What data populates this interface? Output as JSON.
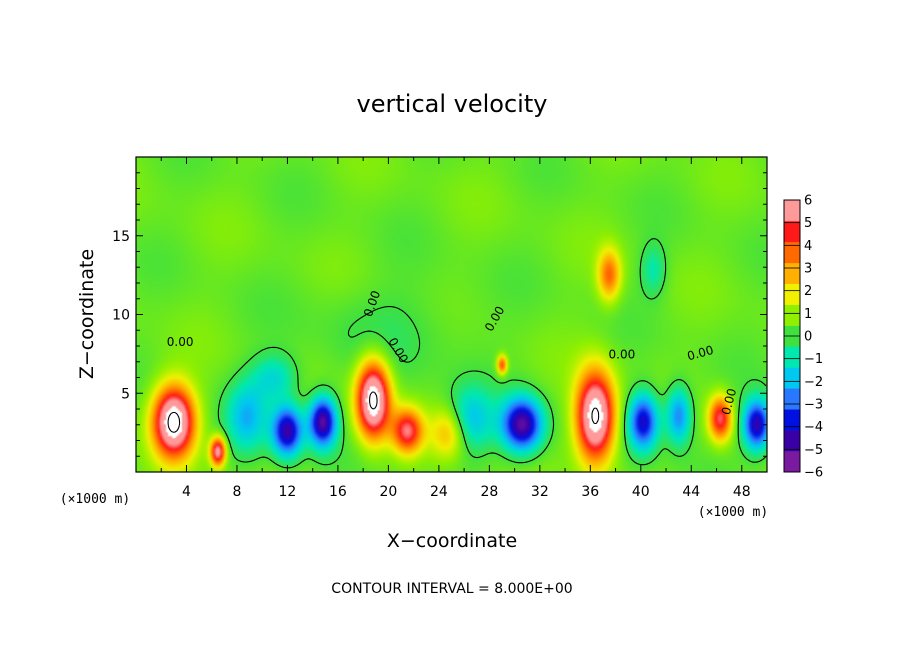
{
  "chart_data": {
    "type": "heatmap",
    "title": "vertical velocity",
    "xlabel": "X−coordinate",
    "ylabel": "Z−coordinate",
    "x_unit_label": "(×1000 m)",
    "y_unit_label": "(×1000 m)",
    "xlim": [
      0,
      50
    ],
    "ylim": [
      0,
      20
    ],
    "x_ticks": [
      4,
      8,
      12,
      16,
      20,
      24,
      28,
      32,
      36,
      40,
      44,
      48
    ],
    "x_tick_labels": [
      "4",
      "8",
      "12",
      "16",
      "20",
      "24",
      "28",
      "32",
      "36",
      "40",
      "44",
      "48"
    ],
    "y_ticks": [
      5,
      10,
      15
    ],
    "y_tick_labels": [
      "5",
      "10",
      "15"
    ],
    "colorbar": {
      "range": [
        -6,
        6
      ],
      "ticks": [
        6,
        5,
        4,
        3,
        2,
        1,
        0,
        -1,
        -2,
        -3,
        -4,
        -5,
        -6
      ],
      "tick_labels": [
        "6",
        "5",
        "4",
        "3",
        "2",
        "1",
        "0",
        "−1",
        "−2",
        "−3",
        "−4",
        "−5",
        "−6"
      ],
      "colors": [
        "#7a1aa0",
        "#3a00a8",
        "#0010e0",
        "#2a78ff",
        "#00c8f0",
        "#00e8b0",
        "#40e040",
        "#90f000",
        "#f0f000",
        "#ffb000",
        "#ff6a00",
        "#ff1a1a",
        "#ff9a9a"
      ]
    },
    "background_value": 0.5,
    "features": [
      {
        "x": 3.0,
        "z": 3.2,
        "value": 8,
        "sx": 1.6,
        "sz": 2.2
      },
      {
        "x": 6.5,
        "z": 1.3,
        "value": 6,
        "sx": 0.6,
        "sz": 0.9
      },
      {
        "x": 8.8,
        "z": 3.5,
        "value": -2.5,
        "sx": 1.6,
        "sz": 2.2
      },
      {
        "x": 12.0,
        "z": 2.6,
        "value": -5.5,
        "sx": 1.2,
        "sz": 1.6
      },
      {
        "x": 14.8,
        "z": 3.2,
        "value": -6,
        "sx": 1.1,
        "sz": 1.6
      },
      {
        "x": 11.0,
        "z": 6.0,
        "value": -2,
        "sx": 1.8,
        "sz": 1.5
      },
      {
        "x": 18.8,
        "z": 4.6,
        "value": 8,
        "sx": 1.3,
        "sz": 2.4
      },
      {
        "x": 21.5,
        "z": 2.6,
        "value": 5,
        "sx": 1.2,
        "sz": 1.4
      },
      {
        "x": 24.8,
        "z": 2.5,
        "value": 2.5,
        "sx": 1.4,
        "sz": 1.6
      },
      {
        "x": 26.5,
        "z": 3.3,
        "value": -2.5,
        "sx": 1.8,
        "sz": 2.0
      },
      {
        "x": 30.6,
        "z": 3.0,
        "value": -6,
        "sx": 1.6,
        "sz": 1.7
      },
      {
        "x": 36.4,
        "z": 3.5,
        "value": 8,
        "sx": 1.5,
        "sz": 2.8
      },
      {
        "x": 37.5,
        "z": 12.5,
        "value": 3.5,
        "sx": 0.9,
        "sz": 1.6
      },
      {
        "x": 41.0,
        "z": 12.8,
        "value": -1.5,
        "sx": 1.0,
        "sz": 1.6
      },
      {
        "x": 40.2,
        "z": 3.2,
        "value": -5,
        "sx": 1.2,
        "sz": 1.8
      },
      {
        "x": 43.0,
        "z": 3.6,
        "value": -3.5,
        "sx": 1.0,
        "sz": 1.8
      },
      {
        "x": 46.3,
        "z": 3.4,
        "value": 5,
        "sx": 0.9,
        "sz": 1.4
      },
      {
        "x": 49.2,
        "z": 3.0,
        "value": -5.5,
        "sx": 1.1,
        "sz": 1.6
      },
      {
        "x": 29.0,
        "z": 6.8,
        "value": 4,
        "sx": 0.4,
        "sz": 0.6
      },
      {
        "x": 20.5,
        "z": 9.0,
        "value": -0.6,
        "sx": 6.0,
        "sz": 3.0
      }
    ],
    "contour_label": "0.00",
    "contour_interval_note": "CONTOUR INTERVAL = 8.000E+00"
  }
}
